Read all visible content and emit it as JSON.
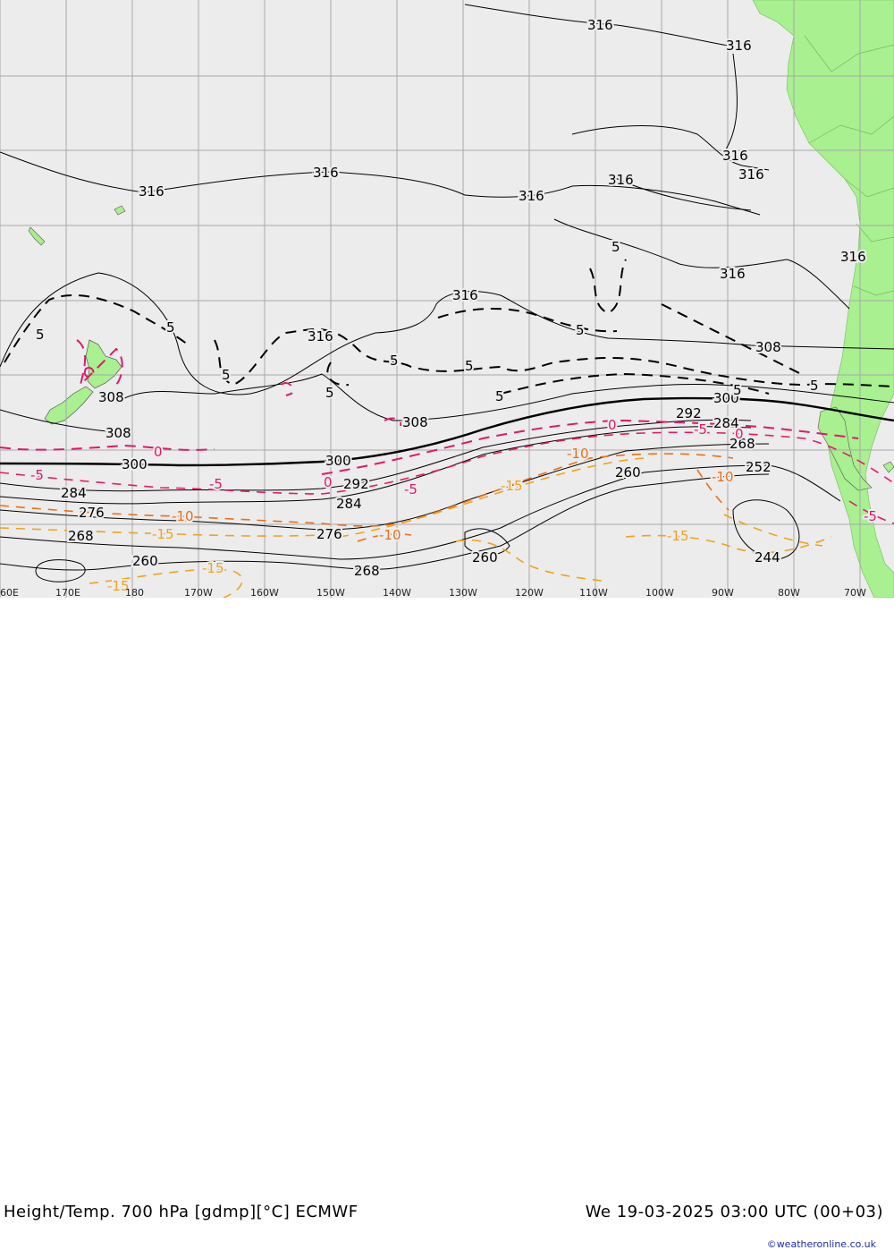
{
  "title": "Height/Temp. 700 hPa [gdmp][°C] ECMWF",
  "datetime": "We 19-03-2025 03:00 UTC (00+03)",
  "credit": "©weatheronline.co.uk",
  "colors": {
    "land": "#a8f090",
    "ocean": "#ececec",
    "grid": "#a9a9a9",
    "height_contour": "#000000",
    "temp_0": "#e0186c",
    "temp_minus5": "#e8186c",
    "temp_minus10": "#e8701a",
    "temp_minus15": "#f0a21c"
  },
  "longitude_labels": [
    "60E",
    "170E",
    "180",
    "170W",
    "160W",
    "150W",
    "140W",
    "130W",
    "120W",
    "110W",
    "100W",
    "90W",
    "80W",
    "70W"
  ],
  "height_labels": [
    "316",
    "316",
    "316",
    "316",
    "316",
    "316",
    "316",
    "316",
    "316",
    "316",
    "316",
    "316",
    "308",
    "308",
    "308",
    "308",
    "300",
    "300",
    "300",
    "292",
    "292",
    "284",
    "284",
    "284",
    "276",
    "276",
    "268",
    "268",
    "268",
    "260",
    "260",
    "260",
    "252",
    "244"
  ],
  "temp_labels": {
    "plus5": [
      "5",
      "5",
      "5",
      "5",
      "5",
      "5",
      "5",
      "5",
      "5",
      "5",
      "5"
    ],
    "zero": [
      "0",
      "0",
      "0",
      "0"
    ],
    "minus5": [
      "-5",
      "-5",
      "-5",
      "-5",
      "-5"
    ],
    "minus10": [
      "-10",
      "-10",
      "-10",
      "-10"
    ],
    "minus15": [
      "-15",
      "-15",
      "-15",
      "-15",
      "-15"
    ]
  }
}
